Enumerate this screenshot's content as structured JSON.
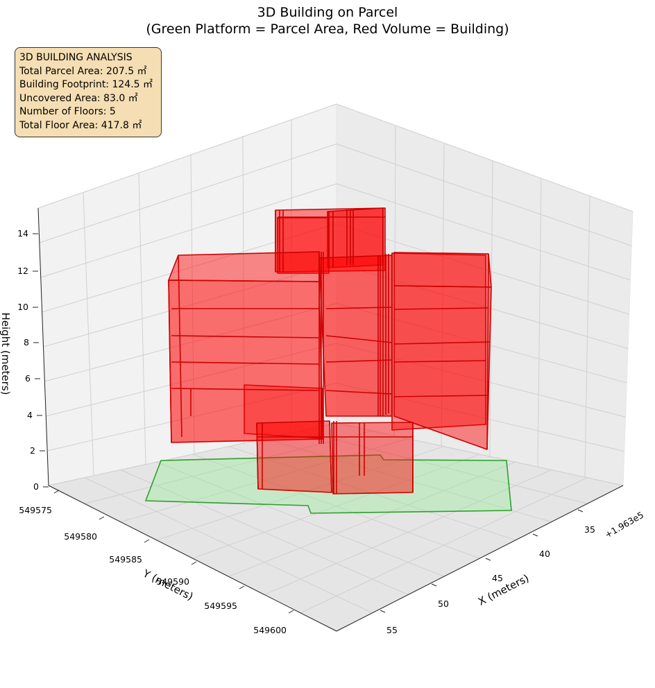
{
  "chart_data": {
    "type": "3d-polygon",
    "title": "3D Building on Parcel",
    "subtitle": "(Green Platform = Parcel Area, Red Volume = Building)",
    "xlabel": "X (meters)",
    "ylabel": "Y (meters)",
    "zlabel": "Height (meters)",
    "x_offset_label": "+1.963e5",
    "x_ticks": [
      "35",
      "40",
      "45",
      "50",
      "55"
    ],
    "y_ticks": [
      "549575",
      "549580",
      "549585",
      "549590",
      "549595",
      "549600"
    ],
    "z_ticks": [
      "0",
      "2",
      "4",
      "6",
      "8",
      "10",
      "12",
      "14"
    ],
    "grid": true,
    "parcel": {
      "label": "Parcel Area",
      "color": "#2ca02c",
      "fill": "#90ee90"
    },
    "building": {
      "label": "Building",
      "color": "#cc0000",
      "fill": "#ff0000",
      "floors": 5
    },
    "analysis": {
      "heading": "3D BUILDING ANALYSIS",
      "lines": [
        "Total Parcel Area: 207.5 ㎡",
        "Building Footprint: 124.5 ㎡",
        "Uncovered Area: 83.0 ㎡",
        "Number of Floors: 5",
        "Total Floor Area: 417.8 ㎡"
      ]
    }
  }
}
